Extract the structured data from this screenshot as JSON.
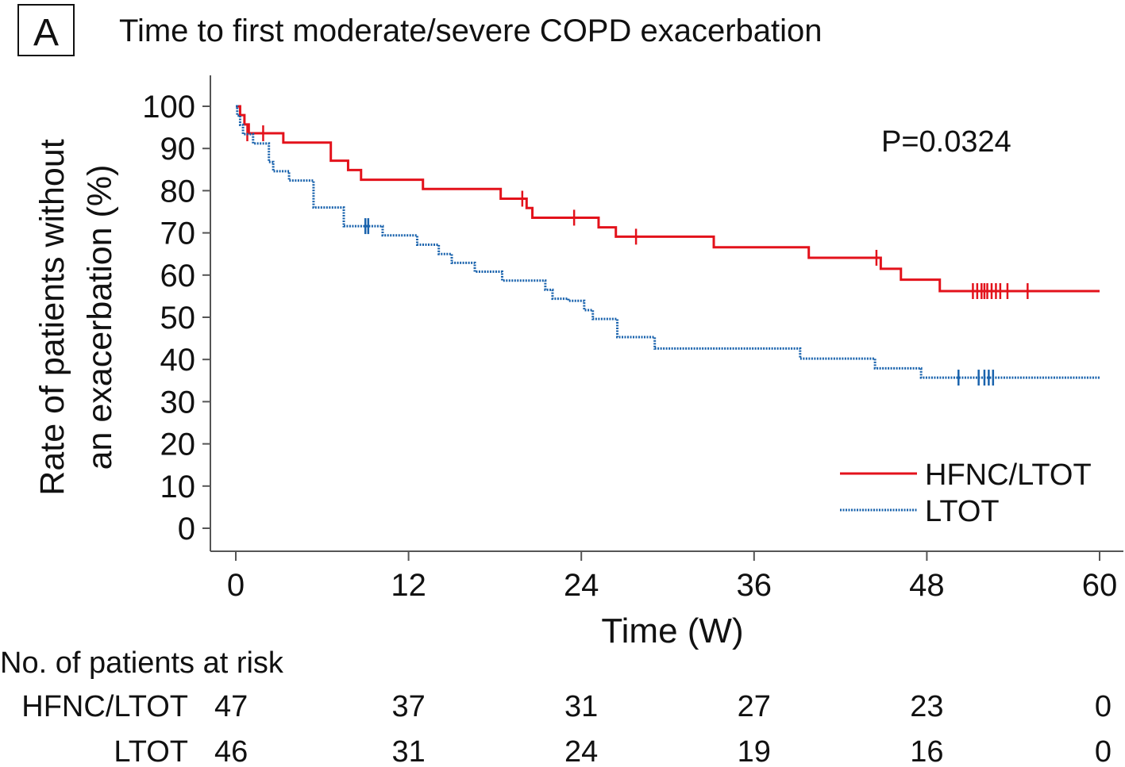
{
  "panel_label": "A",
  "chart_data": {
    "type": "line",
    "title": "Time to first moderate/severe COPD exacerbation",
    "xlabel": "Time (W)",
    "ylabel_line1": "Rate of patients without",
    "ylabel_line2": "an exacerbation (%)",
    "xlim": [
      0,
      60
    ],
    "ylim": [
      0,
      100
    ],
    "x_ticks": [
      0,
      12,
      24,
      36,
      48,
      60
    ],
    "y_ticks": [
      0,
      10,
      20,
      30,
      40,
      50,
      60,
      70,
      80,
      90,
      100
    ],
    "annotation": "P=0.0324",
    "legend_position": "bottom-right",
    "series": [
      {
        "name": "HFNC/LTOT",
        "color": "#e3121b",
        "style": "solid",
        "step_points": [
          [
            0,
            100
          ],
          [
            0.3,
            97.9
          ],
          [
            0.6,
            95.7
          ],
          [
            0.9,
            93.6
          ],
          [
            3.3,
            91.4
          ],
          [
            6.6,
            87.1
          ],
          [
            7.8,
            84.9
          ],
          [
            8.7,
            82.6
          ],
          [
            13,
            80.4
          ],
          [
            18.4,
            78.1
          ],
          [
            20.2,
            75.9
          ],
          [
            20.6,
            73.6
          ],
          [
            25.2,
            71.3
          ],
          [
            26.4,
            69.1
          ],
          [
            33.2,
            66.6
          ],
          [
            39.8,
            64.1
          ],
          [
            44.8,
            61.5
          ],
          [
            46.2,
            58.9
          ],
          [
            48.9,
            56.2
          ],
          [
            60,
            56.2
          ]
        ],
        "censor_points": [
          [
            0.8,
            93.6
          ],
          [
            1.9,
            93.6
          ],
          [
            19.9,
            78.1
          ],
          [
            23.5,
            73.6
          ],
          [
            27.8,
            69.1
          ],
          [
            44.5,
            64.1
          ],
          [
            51.2,
            56.2
          ],
          [
            51.5,
            56.2
          ],
          [
            51.8,
            56.2
          ],
          [
            52.0,
            56.2
          ],
          [
            52.2,
            56.2
          ],
          [
            52.5,
            56.2
          ],
          [
            52.8,
            56.2
          ],
          [
            53.1,
            56.2
          ],
          [
            53.6,
            56.2
          ],
          [
            55,
            56.2
          ]
        ]
      },
      {
        "name": "LTOT",
        "color": "#1a63ad",
        "style": "dotted",
        "step_points": [
          [
            0,
            100
          ],
          [
            0.1,
            97.8
          ],
          [
            0.3,
            95.6
          ],
          [
            0.5,
            93.4
          ],
          [
            1.2,
            91.2
          ],
          [
            2.3,
            86.8
          ],
          [
            2.6,
            84.6
          ],
          [
            3.7,
            82.4
          ],
          [
            5.4,
            76.0
          ],
          [
            7.5,
            71.6
          ],
          [
            10.2,
            69.4
          ],
          [
            12.6,
            67.2
          ],
          [
            14.1,
            65.0
          ],
          [
            15,
            62.9
          ],
          [
            16.6,
            60.8
          ],
          [
            18.5,
            58.7
          ],
          [
            21.5,
            56.5
          ],
          [
            22,
            54.4
          ],
          [
            23.1,
            53.9
          ],
          [
            24.2,
            51.7
          ],
          [
            24.8,
            49.6
          ],
          [
            26.5,
            45.3
          ],
          [
            29.1,
            42.6
          ],
          [
            39.2,
            40.2
          ],
          [
            44.4,
            37.9
          ],
          [
            47.6,
            35.7
          ],
          [
            60,
            35.7
          ]
        ],
        "censor_points": [
          [
            9.0,
            71.6
          ],
          [
            9.2,
            71.6
          ],
          [
            50.2,
            35.7
          ],
          [
            51.6,
            35.7
          ],
          [
            52.0,
            35.7
          ],
          [
            52.3,
            35.7
          ],
          [
            52.6,
            35.7
          ]
        ]
      }
    ],
    "risk_table": {
      "header": "No. of patients at risk",
      "rows": [
        {
          "label": "HFNC/LTOT",
          "counts": [
            "47",
            "37",
            "31",
            "27",
            "23",
            "0"
          ]
        },
        {
          "label": "LTOT",
          "counts": [
            "46",
            "31",
            "24",
            "19",
            "16",
            "0"
          ]
        }
      ]
    }
  }
}
